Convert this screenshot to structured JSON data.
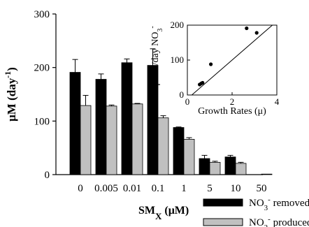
{
  "chart_data": [
    {
      "type": "bar",
      "ylabel_main": "μM (day",
      "ylabel_sup": "-1",
      "ylabel_close": ")",
      "xlabel_main": "SM",
      "xlabel_sub": "X",
      "xlabel_unit": " (μM)",
      "categories": [
        "0",
        "0.005",
        "0.01",
        "0.1",
        "1",
        "5",
        "10",
        "50"
      ],
      "ylim": [
        0,
        300
      ],
      "yticks": [
        "0",
        "100",
        "200",
        "300"
      ],
      "series": [
        {
          "name_pre": "NO",
          "name_sub": "3",
          "name_sup": "-",
          "name_post": " removed",
          "color": "#000000",
          "values": [
            191,
            178,
            209,
            204,
            88,
            30,
            33,
            0
          ],
          "errors": [
            24,
            10,
            7,
            31,
            1,
            6,
            3,
            0
          ]
        },
        {
          "name_pre": "NO",
          "name_sub": "2",
          "name_sup": "-",
          "name_post": " produced",
          "color": "#c0c0c0",
          "values": [
            129,
            128,
            132,
            106,
            66,
            23,
            21,
            1
          ],
          "errors": [
            19,
            2,
            1,
            4,
            3,
            2,
            2,
            0
          ]
        }
      ]
    },
    {
      "type": "scatter",
      "xlabel": "Growth Rates (μ)",
      "ylabel_pre": "μmol/day NO",
      "ylabel_sub": "3",
      "ylabel_sup": "-",
      "xlim": [
        0,
        4
      ],
      "ylim": [
        0,
        200
      ],
      "xticks": [
        "0",
        "2",
        "4"
      ],
      "yticks": [
        "0",
        "100",
        "200"
      ],
      "points": [
        {
          "x": 0.55,
          "y": 30
        },
        {
          "x": 0.62,
          "y": 33
        },
        {
          "x": 0.68,
          "y": 35
        },
        {
          "x": 1.05,
          "y": 88
        },
        {
          "x": 2.65,
          "y": 191
        },
        {
          "x": 3.1,
          "y": 178
        }
      ],
      "trendline": {
        "x": [
          0.2,
          3.8
        ],
        "y": [
          0,
          200
        ]
      }
    }
  ]
}
